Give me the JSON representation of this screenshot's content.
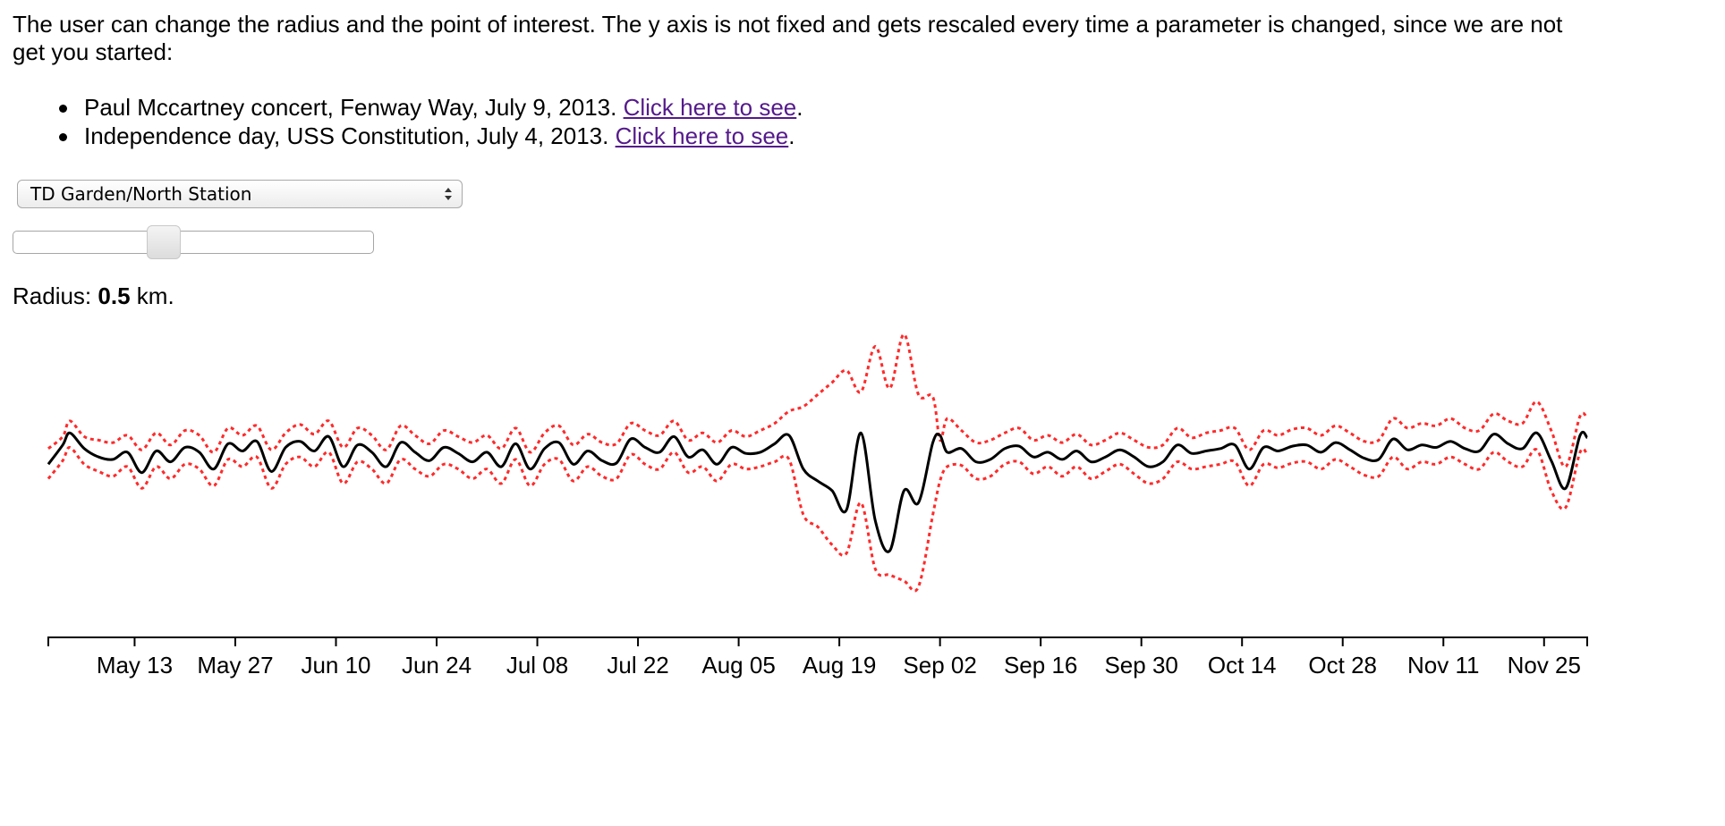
{
  "intro": {
    "line1": "The user can change the radius and the point of interest. The y axis is not fixed and gets rescaled every time a parameter is changed, since we are not",
    "line2": "get you started:"
  },
  "examples": [
    {
      "text": "Paul Mccartney concert, Fenway Way, July 9, 2013.",
      "link": "Click here to see",
      "end": "."
    },
    {
      "text": "Independence day, USS Constitution, July 4, 2013.",
      "link": "Click here to see",
      "end": "."
    }
  ],
  "controls": {
    "location_select": {
      "value": "TD Garden/North Station",
      "icon": "select-arrows-icon"
    },
    "radius_slider": {
      "fraction": 0.41
    },
    "radius_label": {
      "prefix": "Radius:",
      "value": "0.5",
      "unit": "km."
    }
  },
  "colors": {
    "main_line": "#000000",
    "bounds": "#ff2a2a",
    "link": "#551a8b"
  },
  "chart_data": {
    "type": "line",
    "x_start": "2013-05-01",
    "x_end": "2013-12-01",
    "x_ticks": [
      "May 13",
      "May 27",
      "Jun 10",
      "Jun 24",
      "Jul 08",
      "Jul 22",
      "Aug 05",
      "Aug 19",
      "Sep 02",
      "Sep 16",
      "Sep 30",
      "Oct 14",
      "Oct 28",
      "Nov 11",
      "Nov 25"
    ],
    "y_axis_visible": false,
    "grid": false,
    "legend": "none",
    "ylim": [
      -1.2,
      1
    ],
    "series": [
      {
        "role": "main",
        "style": "solid",
        "color": "#000000",
        "x": [
          "2013-05-01",
          "2013-05-03",
          "2013-05-04",
          "2013-05-06",
          "2013-05-08",
          "2013-05-10",
          "2013-05-12",
          "2013-05-14",
          "2013-05-16",
          "2013-05-18",
          "2013-05-20",
          "2013-05-22",
          "2013-05-24",
          "2013-05-26",
          "2013-05-28",
          "2013-05-30",
          "2013-06-01",
          "2013-06-03",
          "2013-06-05",
          "2013-06-07",
          "2013-06-09",
          "2013-06-11",
          "2013-06-13",
          "2013-06-15",
          "2013-06-17",
          "2013-06-19",
          "2013-06-21",
          "2013-06-23",
          "2013-06-25",
          "2013-06-27",
          "2013-06-29",
          "2013-07-01",
          "2013-07-03",
          "2013-07-05",
          "2013-07-07",
          "2013-07-09",
          "2013-07-11",
          "2013-07-13",
          "2013-07-15",
          "2013-07-17",
          "2013-07-19",
          "2013-07-21",
          "2013-07-23",
          "2013-07-25",
          "2013-07-27",
          "2013-07-29",
          "2013-07-31",
          "2013-08-02",
          "2013-08-04",
          "2013-08-06",
          "2013-08-08",
          "2013-08-10",
          "2013-08-12",
          "2013-08-14",
          "2013-08-16",
          "2013-08-18",
          "2013-08-20",
          "2013-08-22",
          "2013-08-24",
          "2013-08-26",
          "2013-08-28",
          "2013-08-30",
          "2013-09-01",
          "2013-09-02",
          "2013-09-03",
          "2013-09-05",
          "2013-09-07",
          "2013-09-09",
          "2013-09-11",
          "2013-09-13",
          "2013-09-15",
          "2013-09-17",
          "2013-09-19",
          "2013-09-21",
          "2013-09-23",
          "2013-09-25",
          "2013-09-27",
          "2013-09-29",
          "2013-10-01",
          "2013-10-03",
          "2013-10-05",
          "2013-10-07",
          "2013-10-09",
          "2013-10-11",
          "2013-10-13",
          "2013-10-15",
          "2013-10-17",
          "2013-10-19",
          "2013-10-21",
          "2013-10-23",
          "2013-10-25",
          "2013-10-27",
          "2013-10-29",
          "2013-10-31",
          "2013-11-02",
          "2013-11-04",
          "2013-11-06",
          "2013-11-08",
          "2013-11-10",
          "2013-11-12",
          "2013-11-14",
          "2013-11-16",
          "2013-11-18",
          "2013-11-20",
          "2013-11-22",
          "2013-11-24",
          "2013-11-26",
          "2013-11-28",
          "2013-11-30",
          "2013-12-01"
        ],
        "y": [
          -0.08,
          0.08,
          0.18,
          0.05,
          -0.02,
          -0.04,
          0.02,
          -0.15,
          0.03,
          -0.06,
          0.06,
          0.02,
          -0.12,
          0.09,
          0.03,
          0.11,
          -0.14,
          0.06,
          0.11,
          0.03,
          0.15,
          -0.1,
          0.08,
          0.02,
          -0.1,
          0.1,
          0.02,
          -0.05,
          0.06,
          0.01,
          -0.06,
          0.02,
          -0.1,
          0.09,
          -0.12,
          0.05,
          0.1,
          -0.08,
          0.03,
          -0.05,
          -0.07,
          0.13,
          0.06,
          0.02,
          0.15,
          -0.02,
          0.04,
          -0.08,
          0.06,
          0.01,
          0.02,
          0.09,
          0.16,
          -0.12,
          -0.22,
          -0.3,
          -0.46,
          0.18,
          -0.55,
          -0.8,
          -0.3,
          -0.4,
          0.1,
          0.16,
          0.02,
          0.05,
          -0.06,
          -0.04,
          0.05,
          0.07,
          -0.02,
          0.02,
          -0.04,
          0.03,
          -0.06,
          -0.02,
          0.04,
          -0.02,
          -0.1,
          -0.06,
          0.08,
          0.01,
          0.03,
          0.05,
          0.08,
          -0.12,
          0.06,
          0.03,
          0.07,
          0.08,
          0.02,
          0.1,
          0.04,
          -0.03,
          -0.04,
          0.13,
          0.04,
          0.08,
          0.06,
          0.11,
          0.05,
          0.03,
          0.17,
          0.09,
          0.05,
          0.18,
          -0.05,
          -0.28,
          0.16,
          0.14
        ]
      },
      {
        "role": "upper-bound",
        "style": "dotted",
        "color": "#ff2a2a",
        "x": [
          "2013-05-01",
          "2013-05-03",
          "2013-05-04",
          "2013-05-06",
          "2013-05-08",
          "2013-05-10",
          "2013-05-12",
          "2013-05-14",
          "2013-05-16",
          "2013-05-18",
          "2013-05-20",
          "2013-05-22",
          "2013-05-24",
          "2013-05-26",
          "2013-05-28",
          "2013-05-30",
          "2013-06-01",
          "2013-06-03",
          "2013-06-05",
          "2013-06-07",
          "2013-06-09",
          "2013-06-11",
          "2013-06-13",
          "2013-06-15",
          "2013-06-17",
          "2013-06-19",
          "2013-06-21",
          "2013-06-23",
          "2013-06-25",
          "2013-06-27",
          "2013-06-29",
          "2013-07-01",
          "2013-07-03",
          "2013-07-05",
          "2013-07-07",
          "2013-07-09",
          "2013-07-11",
          "2013-07-13",
          "2013-07-15",
          "2013-07-17",
          "2013-07-19",
          "2013-07-21",
          "2013-07-23",
          "2013-07-25",
          "2013-07-27",
          "2013-07-29",
          "2013-07-31",
          "2013-08-02",
          "2013-08-04",
          "2013-08-06",
          "2013-08-08",
          "2013-08-10",
          "2013-08-12",
          "2013-08-14",
          "2013-08-16",
          "2013-08-18",
          "2013-08-20",
          "2013-08-22",
          "2013-08-24",
          "2013-08-26",
          "2013-08-28",
          "2013-08-30",
          "2013-09-01",
          "2013-09-02",
          "2013-09-03",
          "2013-09-05",
          "2013-09-07",
          "2013-09-09",
          "2013-09-11",
          "2013-09-13",
          "2013-09-15",
          "2013-09-17",
          "2013-09-19",
          "2013-09-21",
          "2013-09-23",
          "2013-09-25",
          "2013-09-27",
          "2013-09-29",
          "2013-10-01",
          "2013-10-03",
          "2013-10-05",
          "2013-10-07",
          "2013-10-09",
          "2013-10-11",
          "2013-10-13",
          "2013-10-15",
          "2013-10-17",
          "2013-10-19",
          "2013-10-21",
          "2013-10-23",
          "2013-10-25",
          "2013-10-27",
          "2013-10-29",
          "2013-10-31",
          "2013-11-02",
          "2013-11-04",
          "2013-11-06",
          "2013-11-08",
          "2013-11-10",
          "2013-11-12",
          "2013-11-14",
          "2013-11-16",
          "2013-11-18",
          "2013-11-20",
          "2013-11-22",
          "2013-11-24",
          "2013-11-26",
          "2013-11-28",
          "2013-11-30",
          "2013-12-01"
        ],
        "y": [
          0.05,
          0.15,
          0.28,
          0.15,
          0.12,
          0.1,
          0.16,
          0.04,
          0.18,
          0.08,
          0.2,
          0.16,
          0.02,
          0.22,
          0.16,
          0.24,
          0.04,
          0.18,
          0.25,
          0.17,
          0.28,
          0.06,
          0.22,
          0.16,
          0.04,
          0.24,
          0.16,
          0.09,
          0.2,
          0.15,
          0.1,
          0.16,
          0.05,
          0.22,
          0.02,
          0.18,
          0.24,
          0.08,
          0.17,
          0.1,
          0.09,
          0.26,
          0.2,
          0.16,
          0.28,
          0.12,
          0.18,
          0.1,
          0.2,
          0.15,
          0.2,
          0.26,
          0.36,
          0.4,
          0.5,
          0.6,
          0.7,
          0.52,
          0.9,
          0.55,
          1,
          0.5,
          0.48,
          0.12,
          0.3,
          0.2,
          0.1,
          0.12,
          0.18,
          0.22,
          0.12,
          0.16,
          0.1,
          0.17,
          0.08,
          0.12,
          0.18,
          0.12,
          0.06,
          0.08,
          0.22,
          0.14,
          0.18,
          0.2,
          0.22,
          0.04,
          0.2,
          0.16,
          0.21,
          0.22,
          0.16,
          0.24,
          0.18,
          0.11,
          0.12,
          0.3,
          0.22,
          0.26,
          0.24,
          0.3,
          0.22,
          0.2,
          0.34,
          0.28,
          0.26,
          0.44,
          0.2,
          -0.1,
          0.32,
          0.3
        ]
      },
      {
        "role": "lower-bound",
        "style": "dotted",
        "color": "#ff2a2a",
        "x": [
          "2013-05-01",
          "2013-05-03",
          "2013-05-04",
          "2013-05-06",
          "2013-05-08",
          "2013-05-10",
          "2013-05-12",
          "2013-05-14",
          "2013-05-16",
          "2013-05-18",
          "2013-05-20",
          "2013-05-22",
          "2013-05-24",
          "2013-05-26",
          "2013-05-28",
          "2013-05-30",
          "2013-06-01",
          "2013-06-03",
          "2013-06-05",
          "2013-06-07",
          "2013-06-09",
          "2013-06-11",
          "2013-06-13",
          "2013-06-15",
          "2013-06-17",
          "2013-06-19",
          "2013-06-21",
          "2013-06-23",
          "2013-06-25",
          "2013-06-27",
          "2013-06-29",
          "2013-07-01",
          "2013-07-03",
          "2013-07-05",
          "2013-07-07",
          "2013-07-09",
          "2013-07-11",
          "2013-07-13",
          "2013-07-15",
          "2013-07-17",
          "2013-07-19",
          "2013-07-21",
          "2013-07-23",
          "2013-07-25",
          "2013-07-27",
          "2013-07-29",
          "2013-07-31",
          "2013-08-02",
          "2013-08-04",
          "2013-08-06",
          "2013-08-08",
          "2013-08-10",
          "2013-08-12",
          "2013-08-14",
          "2013-08-16",
          "2013-08-18",
          "2013-08-20",
          "2013-08-22",
          "2013-08-24",
          "2013-08-26",
          "2013-08-28",
          "2013-08-30",
          "2013-09-01",
          "2013-09-02",
          "2013-09-03",
          "2013-09-05",
          "2013-09-07",
          "2013-09-09",
          "2013-09-11",
          "2013-09-13",
          "2013-09-15",
          "2013-09-17",
          "2013-09-19",
          "2013-09-21",
          "2013-09-23",
          "2013-09-25",
          "2013-09-27",
          "2013-09-29",
          "2013-10-01",
          "2013-10-03",
          "2013-10-05",
          "2013-10-07",
          "2013-10-09",
          "2013-10-11",
          "2013-10-13",
          "2013-10-15",
          "2013-10-17",
          "2013-10-19",
          "2013-10-21",
          "2013-10-23",
          "2013-10-25",
          "2013-10-27",
          "2013-10-29",
          "2013-10-31",
          "2013-11-02",
          "2013-11-04",
          "2013-11-06",
          "2013-11-08",
          "2013-11-10",
          "2013-11-12",
          "2013-11-14",
          "2013-11-16",
          "2013-11-18",
          "2013-11-20",
          "2013-11-22",
          "2013-11-24",
          "2013-11-26",
          "2013-11-28",
          "2013-11-30",
          "2013-12-01"
        ],
        "y": [
          -0.2,
          -0.05,
          0.06,
          -0.08,
          -0.14,
          -0.18,
          -0.1,
          -0.28,
          -0.1,
          -0.2,
          -0.08,
          -0.12,
          -0.26,
          -0.04,
          -0.1,
          -0.02,
          -0.28,
          -0.08,
          -0.02,
          -0.1,
          0.02,
          -0.24,
          -0.06,
          -0.12,
          -0.24,
          -0.04,
          -0.12,
          -0.18,
          -0.08,
          -0.12,
          -0.2,
          -0.12,
          -0.24,
          -0.04,
          -0.26,
          -0.08,
          -0.04,
          -0.22,
          -0.1,
          -0.18,
          -0.2,
          0,
          -0.08,
          -0.12,
          0.02,
          -0.15,
          -0.1,
          -0.22,
          -0.08,
          -0.12,
          -0.1,
          -0.06,
          -0.04,
          -0.5,
          -0.6,
          -0.75,
          -0.82,
          -0.4,
          -0.95,
          -1,
          -1.05,
          -1.1,
          -0.5,
          -0.22,
          -0.1,
          -0.09,
          -0.2,
          -0.18,
          -0.08,
          -0.06,
          -0.16,
          -0.1,
          -0.18,
          -0.1,
          -0.2,
          -0.14,
          -0.08,
          -0.16,
          -0.24,
          -0.2,
          -0.06,
          -0.12,
          -0.1,
          -0.08,
          -0.06,
          -0.26,
          -0.08,
          -0.11,
          -0.07,
          -0.06,
          -0.12,
          -0.04,
          -0.1,
          -0.17,
          -0.18,
          -0.02,
          -0.12,
          -0.06,
          -0.08,
          -0.02,
          -0.08,
          -0.12,
          0.02,
          -0.06,
          -0.1,
          0.04,
          -0.3,
          -0.44,
          0.02,
          0
        ]
      }
    ]
  }
}
